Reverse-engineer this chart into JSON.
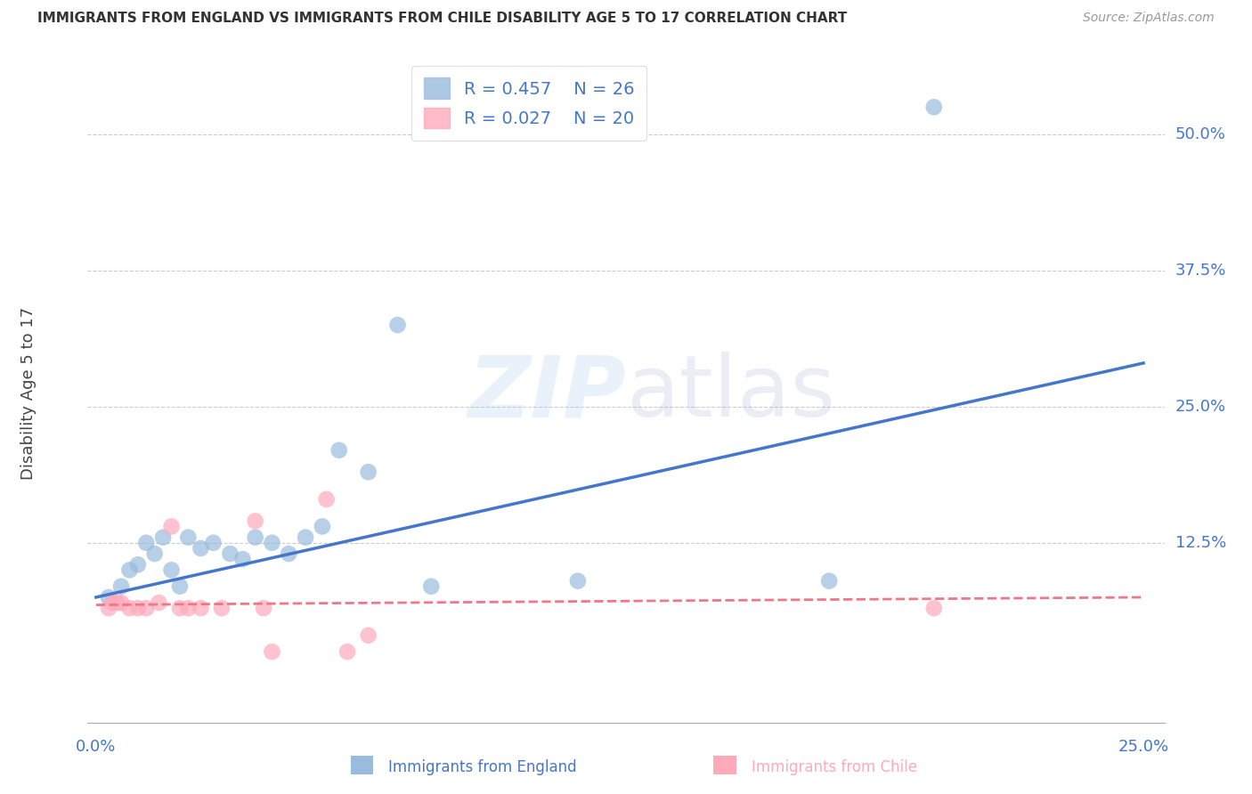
{
  "title": "IMMIGRANTS FROM ENGLAND VS IMMIGRANTS FROM CHILE DISABILITY AGE 5 TO 17 CORRELATION CHART",
  "source": "Source: ZipAtlas.com",
  "ylabel": "Disability Age 5 to 17",
  "ytick_labels": [
    "12.5%",
    "25.0%",
    "37.5%",
    "50.0%"
  ],
  "ytick_values": [
    0.125,
    0.25,
    0.375,
    0.5
  ],
  "xlim": [
    -0.002,
    0.255
  ],
  "ylim": [
    -0.04,
    0.565
  ],
  "legend_england_R": "R = 0.457",
  "legend_england_N": "N = 26",
  "legend_chile_R": "R = 0.027",
  "legend_chile_N": "N = 20",
  "color_england": "#99BBDD",
  "color_chile": "#FFAABB",
  "color_england_line": "#4477CC",
  "color_chile_line": "#EE7788",
  "england_x": [
    0.003,
    0.006,
    0.008,
    0.01,
    0.012,
    0.014,
    0.016,
    0.018,
    0.02,
    0.022,
    0.025,
    0.028,
    0.032,
    0.035,
    0.038,
    0.042,
    0.046,
    0.05,
    0.054,
    0.058,
    0.065,
    0.072,
    0.08,
    0.115,
    0.175,
    0.2
  ],
  "england_y": [
    0.075,
    0.085,
    0.1,
    0.105,
    0.125,
    0.115,
    0.13,
    0.1,
    0.085,
    0.13,
    0.12,
    0.125,
    0.115,
    0.11,
    0.13,
    0.125,
    0.115,
    0.13,
    0.14,
    0.21,
    0.19,
    0.325,
    0.085,
    0.09,
    0.09,
    0.525
  ],
  "chile_x": [
    0.003,
    0.004,
    0.005,
    0.006,
    0.008,
    0.01,
    0.012,
    0.015,
    0.018,
    0.02,
    0.022,
    0.025,
    0.03,
    0.038,
    0.04,
    0.042,
    0.055,
    0.06,
    0.065,
    0.2
  ],
  "chile_y": [
    0.065,
    0.07,
    0.07,
    0.07,
    0.065,
    0.065,
    0.065,
    0.07,
    0.14,
    0.065,
    0.065,
    0.065,
    0.065,
    0.145,
    0.065,
    0.025,
    0.165,
    0.025,
    0.04,
    0.065
  ],
  "england_line_x": [
    0.0,
    0.25
  ],
  "england_line_y": [
    0.075,
    0.29
  ],
  "chile_line_x": [
    0.0,
    0.25
  ],
  "chile_line_y": [
    0.068,
    0.075
  ],
  "watermark_zip": "ZIP",
  "watermark_atlas": "atlas",
  "background_color": "#FFFFFF",
  "legend_label_england": "Immigrants from England",
  "legend_label_chile": "Immigrants from Chile",
  "xtick_labels": [
    "0.0%",
    "25.0%"
  ],
  "xtick_values": [
    0.0,
    0.25
  ]
}
